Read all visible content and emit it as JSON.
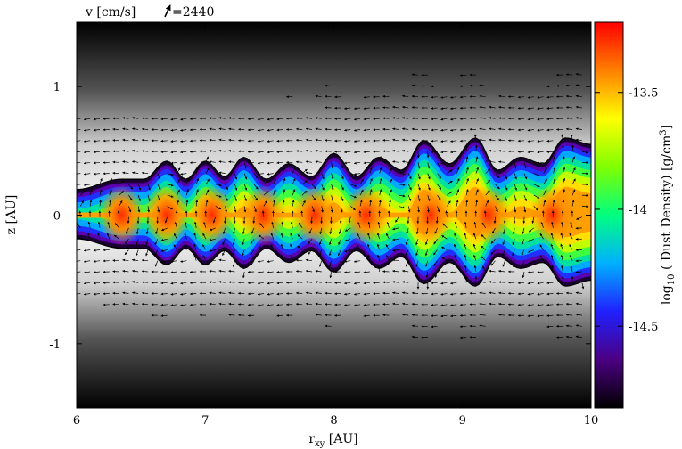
{
  "chart_data": {
    "type": "heatmap",
    "title": "",
    "xlabel": "r",
    "xlabel_sub": "xy",
    "xlabel_unit": " [AU]",
    "ylabel": "z [AU]",
    "xlim": [
      6,
      10
    ],
    "ylim": [
      -1.5,
      1.5
    ],
    "x_ticks": [
      6,
      7,
      8,
      9,
      10
    ],
    "y_ticks": [
      -1,
      0,
      1
    ],
    "colorbar": {
      "label_prefix": "log",
      "label_sub": "10",
      "label_main": " ( Dust Density) [g/cm",
      "label_sup": "3",
      "label_end": "]",
      "range": [
        -14.85,
        -13.2
      ],
      "ticks": [
        -14.5,
        -14,
        -13.5
      ],
      "colors": [
        "#000000",
        "#4b0082",
        "#2020ff",
        "#00b0ff",
        "#00ff80",
        "#80ff00",
        "#ffff00",
        "#ff8000",
        "#ff0000"
      ]
    },
    "velocity_legend": {
      "prefix": "v [cm/s]",
      "value_text": "=2440",
      "reference_value": 2440
    },
    "dust_layer": {
      "bump_centers_r": [
        6.35,
        6.7,
        7.0,
        7.3,
        7.65,
        8.0,
        8.35,
        8.7,
        9.1,
        9.45,
        9.8
      ],
      "top_crest_z": [
        0.28,
        0.42,
        0.42,
        0.45,
        0.4,
        0.48,
        0.45,
        0.58,
        0.6,
        0.45,
        0.6
      ],
      "top_trough_z": [
        0.15,
        0.28,
        0.28,
        0.3,
        0.28,
        0.3,
        0.3,
        0.35,
        0.4,
        0.35,
        0.4
      ],
      "density_peaks_r": [
        6.35,
        6.7,
        7.05,
        7.45,
        7.85,
        8.25,
        8.75,
        9.2,
        9.7
      ]
    },
    "background": "grayscale gas density, dark at |z| large, bright near midplane"
  }
}
